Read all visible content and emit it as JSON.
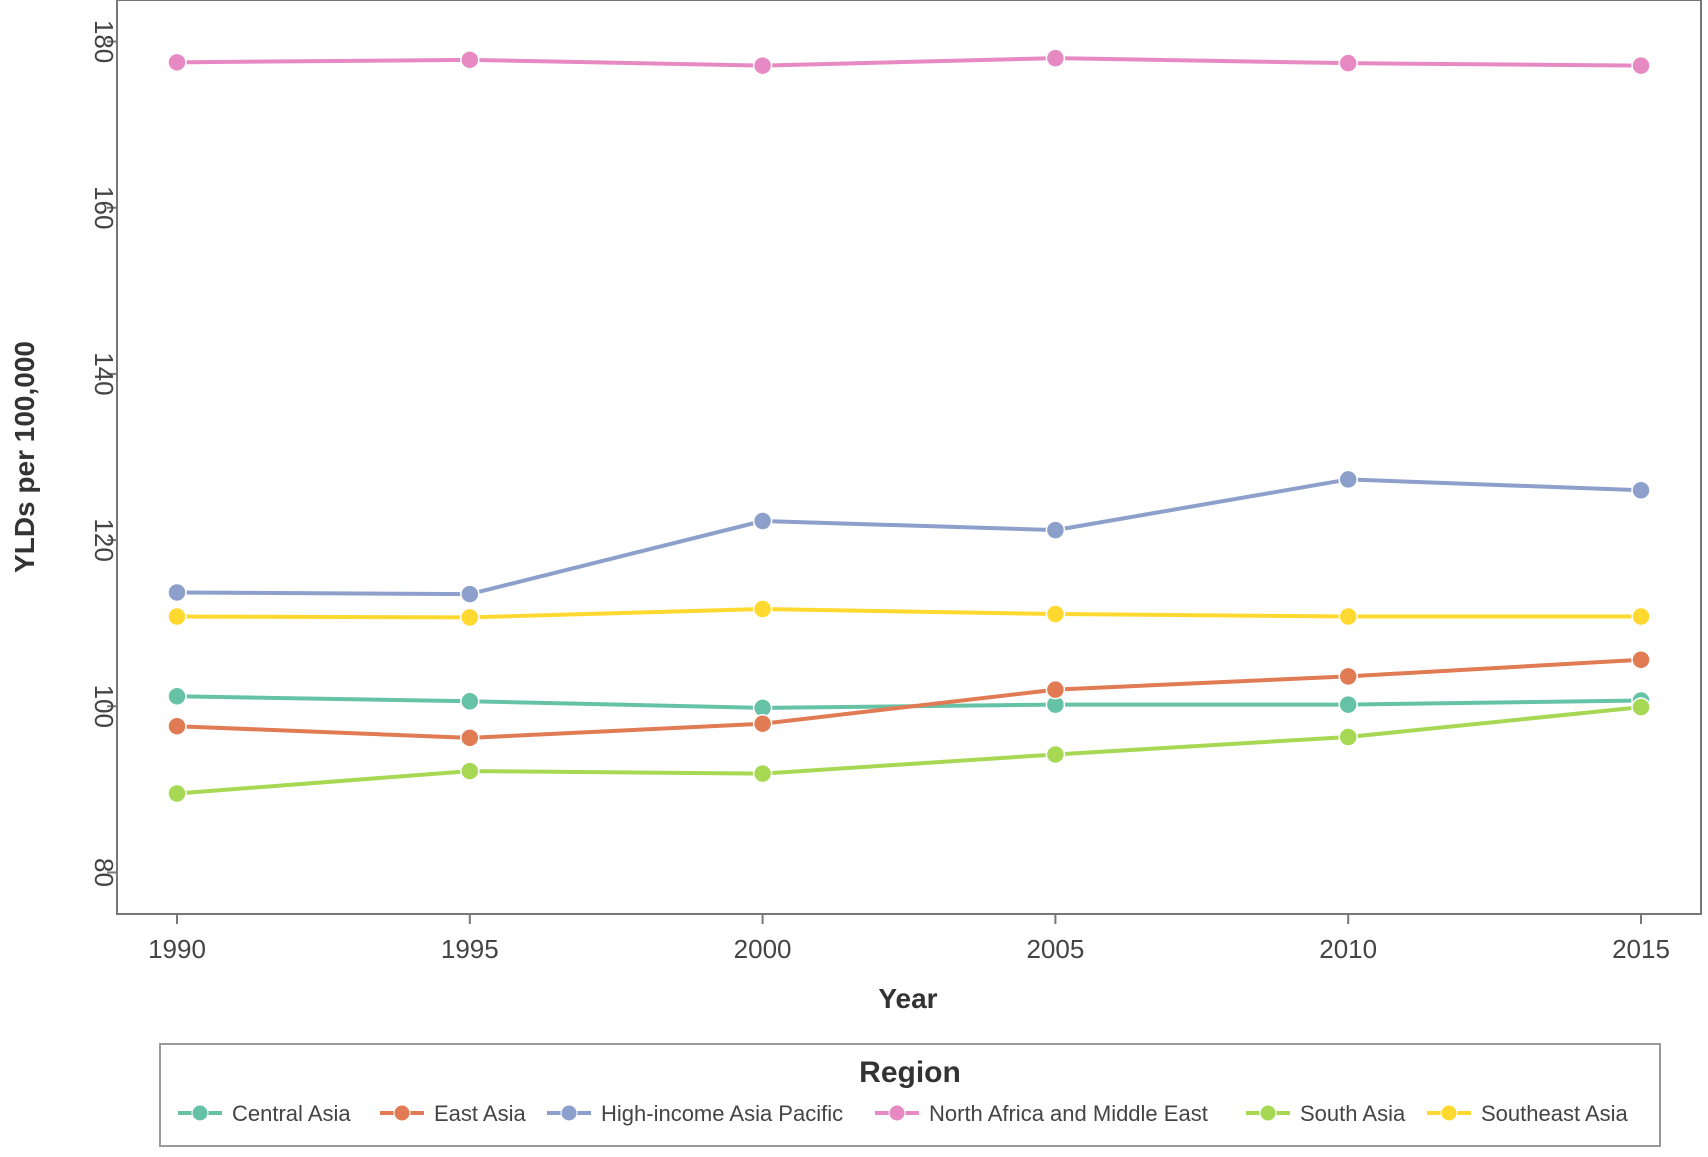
{
  "chart_data": {
    "type": "line",
    "xlabel": "Year",
    "ylabel": "YLDs per 100,000",
    "x": [
      1990,
      1995,
      2000,
      2005,
      2010,
      2015
    ],
    "ylim": [
      75,
      185
    ],
    "yticks": [
      80,
      100,
      120,
      140,
      160,
      180
    ],
    "xticks": [
      1990,
      1995,
      2000,
      2005,
      2010,
      2015
    ],
    "grid": false,
    "legend": {
      "title": "Region",
      "position": "bottom"
    },
    "series": [
      {
        "name": "Central Asia",
        "color": "#66c2a5",
        "values": [
          101.2,
          100.6,
          99.8,
          100.2,
          100.2,
          100.7
        ]
      },
      {
        "name": "East Asia",
        "color": "#e07b54",
        "values": [
          97.6,
          96.2,
          97.9,
          102.0,
          103.6,
          105.6
        ]
      },
      {
        "name": "High-income Asia Pacific",
        "color": "#8da0cb",
        "values": [
          113.7,
          113.5,
          122.3,
          121.2,
          127.3,
          126.0
        ]
      },
      {
        "name": "North Africa and Middle East",
        "color": "#e78ac3",
        "values": [
          177.5,
          177.8,
          177.1,
          178.0,
          177.4,
          177.1
        ]
      },
      {
        "name": "South Asia",
        "color": "#a6d854",
        "values": [
          89.5,
          92.2,
          91.9,
          94.2,
          96.3,
          99.9
        ]
      },
      {
        "name": "Southeast Asia",
        "color": "#ffd92f",
        "values": [
          110.8,
          110.7,
          111.7,
          111.1,
          110.8,
          110.8
        ]
      }
    ]
  }
}
